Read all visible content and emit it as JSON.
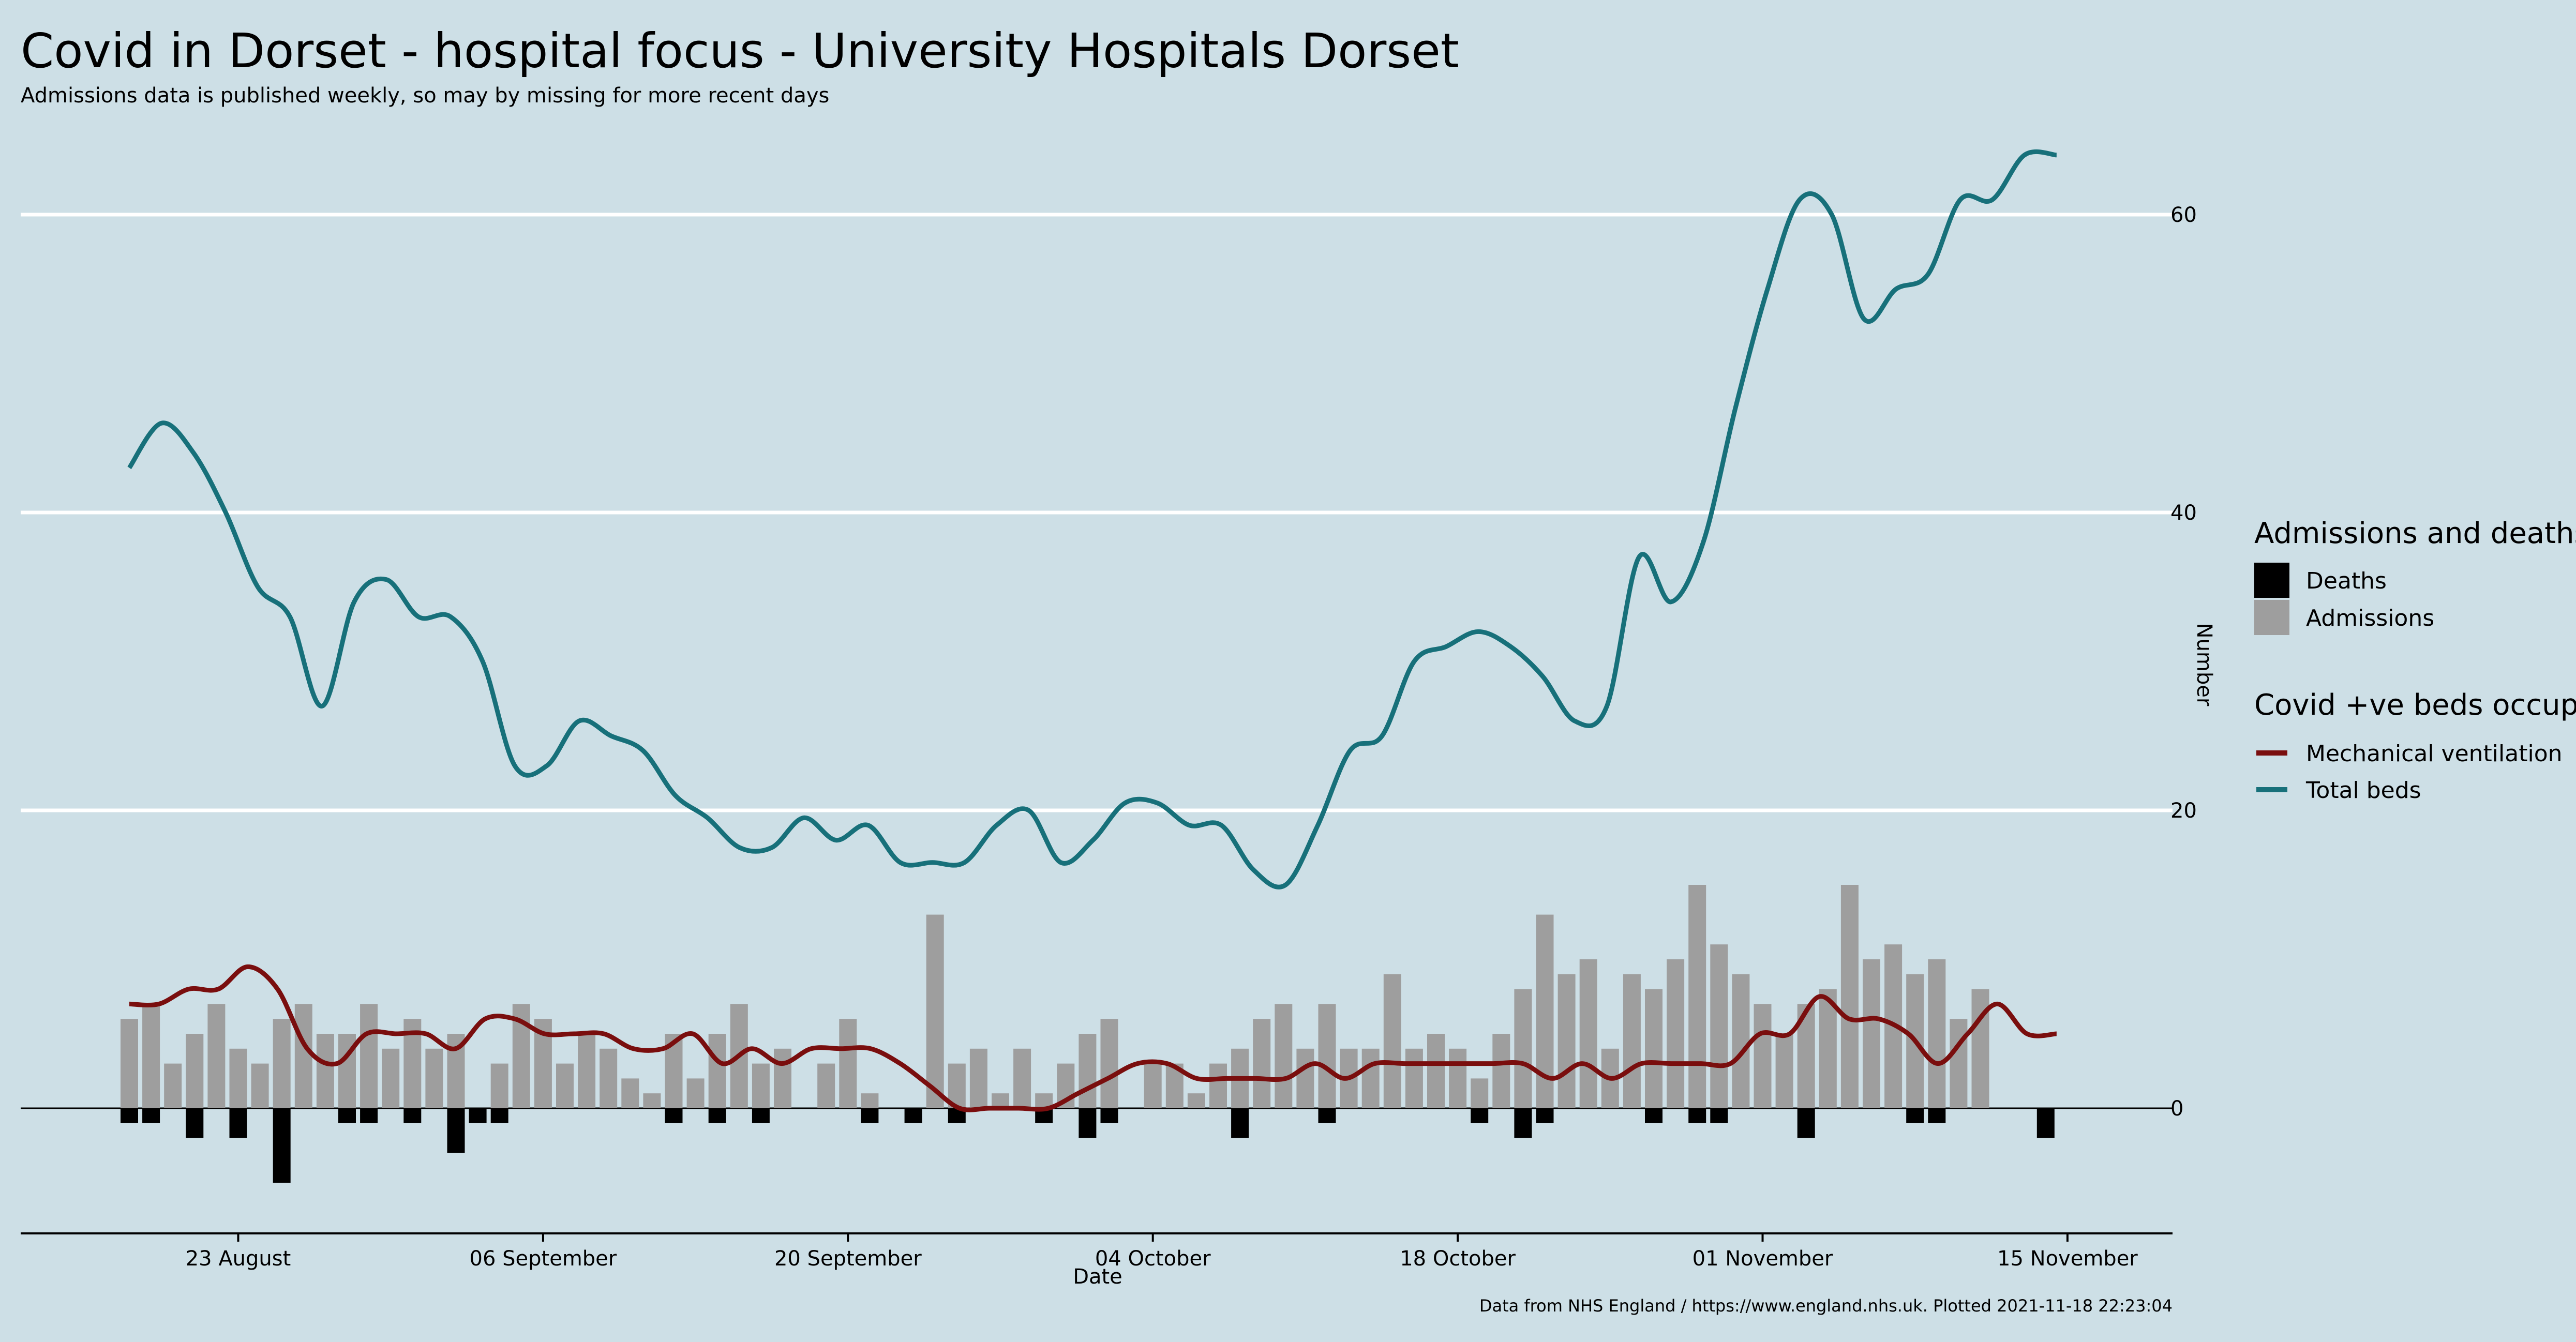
{
  "title": "Covid in Dorset - hospital focus - University Hospitals Dorset",
  "subtitle": "Admissions data is published weekly, so may by missing for more recent days",
  "caption": "Data from NHS England / https://www.england.nhs.uk. Plotted 2021-11-18 22:23:04",
  "colors": {
    "background": "#cddfe6",
    "grid": "#ffffff",
    "admissions": "#9e9e9e",
    "deaths": "#000000",
    "ventilation": "#7a0e0e",
    "total_beds": "#17707a"
  },
  "chart_data": {
    "type": "bar",
    "xlabel": "Date",
    "ylabel": "Number",
    "x_start": "2021-08-18",
    "x_ticks": [
      "23 August",
      "06 September",
      "20 September",
      "04 October",
      "18 October",
      "01 November",
      "15 November"
    ],
    "y_ticks": [
      "0",
      "20",
      "40",
      "60"
    ],
    "ylim": [
      -8,
      67
    ],
    "grid": true,
    "legend_position": "right",
    "legend": {
      "admissions_title": "Admissions and deaths",
      "deaths_label": "Deaths",
      "admissions_label": "Admissions",
      "beds_title": "Covid +ve beds occupied",
      "ventilation_label": "Mechanical ventilation",
      "total_beds_label": "Total beds"
    },
    "admissions": [
      6,
      7,
      3,
      5,
      7,
      4,
      3,
      6,
      7,
      5,
      5,
      7,
      4,
      6,
      4,
      5,
      0,
      3,
      7,
      6,
      3,
      5,
      4,
      2,
      1,
      5,
      2,
      5,
      7,
      3,
      4,
      0,
      3,
      6,
      1,
      0,
      0,
      13,
      3,
      4,
      1,
      4,
      1,
      3,
      5,
      6,
      0,
      3,
      3,
      1,
      3,
      4,
      6,
      7,
      4,
      7,
      4,
      4,
      9,
      4,
      5,
      4,
      2,
      5,
      8,
      13,
      9,
      10,
      4,
      9,
      8,
      10,
      15,
      11,
      9,
      7,
      5,
      7,
      8,
      15,
      10,
      11,
      9,
      10,
      6,
      8
    ],
    "deaths": [
      1,
      1,
      0,
      2,
      0,
      2,
      0,
      5,
      0,
      0,
      1,
      1,
      0,
      1,
      0,
      3,
      1,
      1,
      0,
      0,
      0,
      0,
      0,
      0,
      0,
      1,
      0,
      1,
      0,
      1,
      0,
      0,
      0,
      0,
      1,
      0,
      1,
      0,
      1,
      0,
      0,
      0,
      1,
      0,
      2,
      1,
      0,
      0,
      0,
      0,
      0,
      2,
      0,
      0,
      0,
      1,
      0,
      0,
      0,
      0,
      0,
      0,
      1,
      0,
      2,
      1,
      0,
      0,
      0,
      0,
      1,
      0,
      1,
      1,
      0,
      0,
      0,
      2,
      0,
      0,
      0,
      0,
      1,
      1,
      0,
      0,
      0,
      0,
      2
    ],
    "ventilation": [
      7,
      7,
      8,
      8,
      9.5,
      8,
      4,
      3,
      5,
      5,
      5,
      4,
      6,
      6,
      5,
      5,
      5,
      4,
      4,
      5,
      3,
      4,
      3,
      4,
      4,
      4,
      3,
      1.5,
      0,
      0,
      0,
      0,
      1,
      2,
      3,
      3,
      2,
      2,
      2,
      2,
      3,
      2,
      3,
      3,
      3,
      3,
      3,
      3,
      2,
      3,
      2,
      3,
      3,
      3,
      3,
      5,
      5,
      7.5,
      6,
      6,
      5,
      3,
      5,
      7,
      5,
      5
    ],
    "total_beds": [
      43,
      46,
      44,
      40,
      35,
      33,
      27,
      34,
      35.5,
      33,
      33,
      30,
      23,
      23,
      26,
      25,
      24,
      21,
      19.5,
      17.5,
      17.5,
      19.5,
      18,
      19,
      16.5,
      16.5,
      16.5,
      19,
      20,
      16.5,
      18,
      20.5,
      20.5,
      19,
      19,
      16,
      15,
      19,
      24,
      25,
      30,
      31,
      32,
      31,
      29,
      26,
      27,
      37,
      34,
      38,
      47,
      55,
      61,
      60,
      53,
      55,
      56,
      61,
      61,
      64,
      64
    ]
  }
}
